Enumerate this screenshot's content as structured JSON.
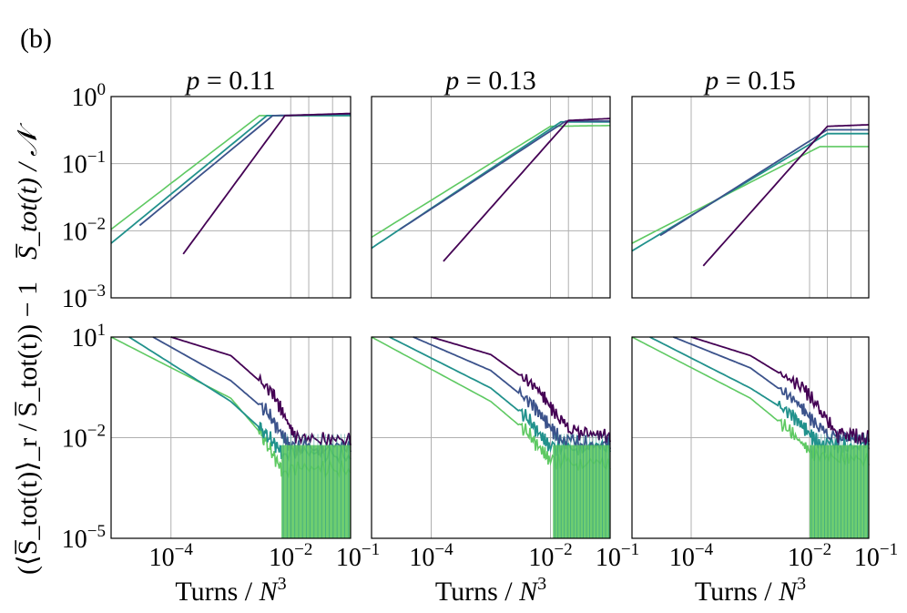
{
  "panel_label": "(b)",
  "xlabel": "Turns / N",
  "xlabel_sup": "3",
  "ylabel_top": "S̅_tot(t) / 𝒩",
  "ylabel_bottom": "(⟨S̅_tot(t)⟩_r / S̅_tot(t)) − 1",
  "colors": {
    "L1": "#440154",
    "L2": "#3b528b",
    "L3": "#21918c",
    "L4": "#5ec962",
    "grid": "#b0b0b0"
  },
  "chart_data": [
    {
      "type": "line",
      "title": "p = 0.11",
      "row": "growth",
      "xscale": "log",
      "yscale": "log",
      "xlim": [
        1e-05,
        0.1
      ],
      "ylim": [
        0.001,
        1
      ],
      "yticks": [
        "10^0",
        "10^-1",
        "10^-2",
        "10^-3"
      ],
      "series": [
        {
          "name": "L1",
          "x": [
            0.00016,
            0.008,
            0.1
          ],
          "y": [
            0.0045,
            0.52,
            0.56
          ]
        },
        {
          "name": "L2",
          "x": [
            3e-05,
            0.005,
            0.1
          ],
          "y": [
            0.012,
            0.52,
            0.55
          ]
        },
        {
          "name": "L3",
          "x": [
            1e-05,
            0.004,
            0.1
          ],
          "y": [
            0.0065,
            0.52,
            0.52
          ]
        },
        {
          "name": "L4",
          "x": [
            1e-05,
            0.003,
            0.1
          ],
          "y": [
            0.0105,
            0.52,
            0.52
          ]
        }
      ]
    },
    {
      "type": "line",
      "title": "p = 0.13",
      "row": "growth",
      "xscale": "log",
      "yscale": "log",
      "xlim": [
        1e-05,
        0.1
      ],
      "ylim": [
        0.001,
        1
      ],
      "series": [
        {
          "name": "L1",
          "x": [
            0.00016,
            0.02,
            0.1
          ],
          "y": [
            0.0035,
            0.44,
            0.47
          ]
        },
        {
          "name": "L2",
          "x": [
            3e-05,
            0.018,
            0.1
          ],
          "y": [
            0.0105,
            0.43,
            0.43
          ]
        },
        {
          "name": "L3",
          "x": [
            1e-05,
            0.015,
            0.1
          ],
          "y": [
            0.0055,
            0.42,
            0.42
          ]
        },
        {
          "name": "L4",
          "x": [
            1e-05,
            0.01,
            0.1
          ],
          "y": [
            0.008,
            0.36,
            0.37
          ]
        }
      ]
    },
    {
      "type": "line",
      "title": "p = 0.15",
      "row": "growth",
      "xscale": "log",
      "yscale": "log",
      "xlim": [
        1e-05,
        0.1
      ],
      "ylim": [
        0.001,
        1
      ],
      "series": [
        {
          "name": "L1",
          "x": [
            0.00016,
            0.02,
            0.1
          ],
          "y": [
            0.003,
            0.36,
            0.38
          ]
        },
        {
          "name": "L2",
          "x": [
            3e-05,
            0.02,
            0.1
          ],
          "y": [
            0.0085,
            0.32,
            0.32
          ]
        },
        {
          "name": "L3",
          "x": [
            1e-05,
            0.02,
            0.1
          ],
          "y": [
            0.005,
            0.28,
            0.28
          ]
        },
        {
          "name": "L4",
          "x": [
            1e-05,
            0.015,
            0.1
          ],
          "y": [
            0.0065,
            0.18,
            0.18
          ]
        }
      ]
    },
    {
      "type": "line",
      "title": "p = 0.11",
      "row": "fluctuation",
      "xscale": "log",
      "yscale": "log",
      "xlim": [
        1e-05,
        0.1
      ],
      "ylim": [
        1e-05,
        10
      ],
      "xticks": [
        "10^-4",
        "10^-2",
        "10^-1"
      ],
      "yticks": [
        "10^1",
        "10^-2",
        "10^-5"
      ],
      "series": [
        {
          "name": "L1",
          "x": [
            0.0001,
            0.001,
            0.005,
            0.012,
            0.1
          ],
          "y": [
            10,
            2.8,
            0.22,
            0.01,
            0.008
          ]
        },
        {
          "name": "L2",
          "x": [
            5e-05,
            0.001,
            0.004,
            0.01,
            0.1
          ],
          "y": [
            10,
            0.5,
            0.06,
            0.005,
            0.005
          ]
        },
        {
          "name": "L3",
          "x": [
            2e-05,
            0.001,
            0.003,
            0.007,
            0.1
          ],
          "y": [
            10,
            0.12,
            0.02,
            0.004,
            0.003
          ]
        },
        {
          "name": "L4",
          "x": [
            1e-05,
            0.001,
            0.003,
            0.007,
            0.1
          ],
          "y": [
            10,
            0.15,
            0.015,
            0.0012,
            0.0012
          ]
        }
      ]
    },
    {
      "type": "line",
      "title": "p = 0.13",
      "row": "fluctuation",
      "xscale": "log",
      "yscale": "log",
      "xlim": [
        1e-05,
        0.1
      ],
      "ylim": [
        1e-05,
        10
      ],
      "xticks": [
        "10^-4",
        "10^-2",
        "10^-1"
      ],
      "series": [
        {
          "name": "L1",
          "x": [
            0.0001,
            0.001,
            0.006,
            0.02,
            0.1
          ],
          "y": [
            10,
            3.0,
            0.3,
            0.015,
            0.01
          ]
        },
        {
          "name": "L2",
          "x": [
            5e-05,
            0.001,
            0.005,
            0.015,
            0.1
          ],
          "y": [
            10,
            1.0,
            0.1,
            0.008,
            0.006
          ]
        },
        {
          "name": "L3",
          "x": [
            2e-05,
            0.001,
            0.004,
            0.01,
            0.1
          ],
          "y": [
            10,
            0.3,
            0.04,
            0.005,
            0.005
          ]
        },
        {
          "name": "L4",
          "x": [
            1e-05,
            0.001,
            0.004,
            0.01,
            0.1
          ],
          "y": [
            10,
            0.12,
            0.015,
            0.002,
            0.0015
          ]
        }
      ]
    },
    {
      "type": "line",
      "title": "p = 0.15",
      "row": "fluctuation",
      "xscale": "log",
      "yscale": "log",
      "xlim": [
        1e-05,
        0.1
      ],
      "ylim": [
        1e-05,
        10
      ],
      "xticks": [
        "10^-4",
        "10^-2",
        "10^-1"
      ],
      "series": [
        {
          "name": "L1",
          "x": [
            0.0001,
            0.001,
            0.008,
            0.03,
            0.1
          ],
          "y": [
            10,
            2.8,
            0.3,
            0.012,
            0.01
          ]
        },
        {
          "name": "L2",
          "x": [
            5e-05,
            0.001,
            0.006,
            0.02,
            0.1
          ],
          "y": [
            10,
            1.2,
            0.12,
            0.01,
            0.008
          ]
        },
        {
          "name": "L3",
          "x": [
            2e-05,
            0.001,
            0.005,
            0.015,
            0.1
          ],
          "y": [
            10,
            0.3,
            0.05,
            0.006,
            0.006
          ]
        },
        {
          "name": "L4",
          "x": [
            1e-05,
            0.001,
            0.004,
            0.012,
            0.1
          ],
          "y": [
            10,
            0.15,
            0.02,
            0.003,
            0.002
          ]
        }
      ]
    }
  ]
}
